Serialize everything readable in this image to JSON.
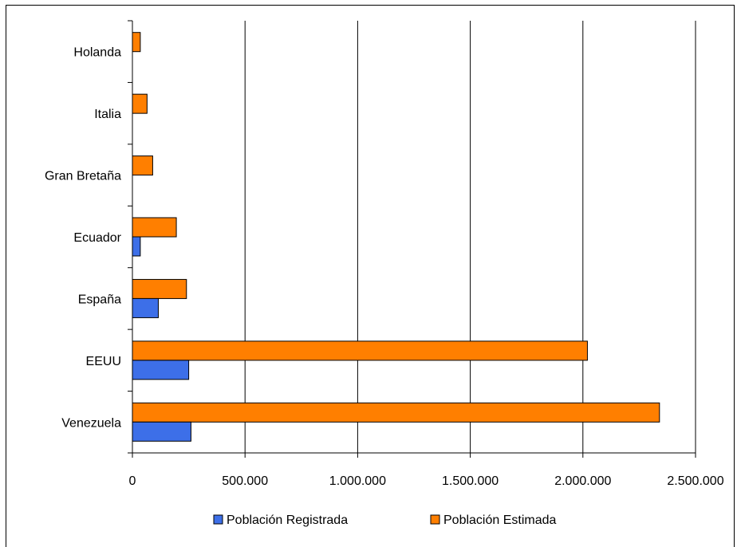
{
  "chart_data": {
    "type": "bar",
    "orientation": "horizontal",
    "categories": [
      "Venezuela",
      "EEUU",
      "España",
      "Ecuador",
      "Gran Bretaña",
      "Italia",
      "Holanda"
    ],
    "series": [
      {
        "name": "Población Registrada",
        "color": "#3d6fe8",
        "values": [
          260000,
          250000,
          115000,
          35000,
          0,
          0,
          0
        ]
      },
      {
        "name": "Población Estimada",
        "color": "#ff7f00",
        "values": [
          2340000,
          2020000,
          240000,
          195000,
          90000,
          65000,
          35000
        ]
      }
    ],
    "xlim": [
      0,
      2500000
    ],
    "xticks": [
      0,
      500000,
      1000000,
      1500000,
      2000000,
      2500000
    ],
    "xtick_labels": [
      "0",
      "500.000",
      "1.000.000",
      "1.500.000",
      "2.000.000",
      "2.500.000"
    ],
    "grid": "vertical",
    "legend": "bottom",
    "title": "",
    "xlabel": "",
    "ylabel": ""
  }
}
